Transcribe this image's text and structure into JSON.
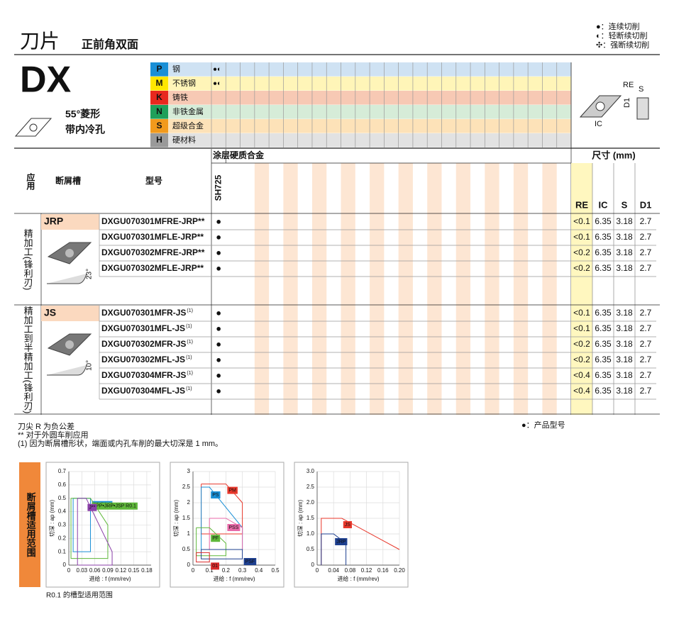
{
  "header": {
    "title": "刀片",
    "subtitle": "正前角双面",
    "legend": [
      "●：连续切削",
      "◐：轻断续切削",
      "✣：强断续切削"
    ]
  },
  "insert": {
    "code": "DX",
    "shape": "55°菱形",
    "feature": "带内冷孔",
    "dims": [
      "RE",
      "S",
      "D1",
      "IC"
    ]
  },
  "materials": [
    {
      "code": "P",
      "name": "钢",
      "color": "#1a8fd6",
      "tint": "#cfe2f3",
      "marks": "●◐"
    },
    {
      "code": "M",
      "name": "不锈钢",
      "color": "#ffe600",
      "tint": "#fff5b8",
      "marks": "●◐"
    },
    {
      "code": "K",
      "name": "铸铁",
      "color": "#e8281e",
      "tint": "#f7c9b4"
    },
    {
      "code": "N",
      "name": "非铁金属",
      "color": "#1fa05a",
      "tint": "#d6ecd8"
    },
    {
      "code": "S",
      "name": "超级合金",
      "color": "#f29a1c",
      "tint": "#fde2b8"
    },
    {
      "code": "H",
      "name": "硬材料",
      "color": "#9a9a9a",
      "tint": "#e2e2e2"
    }
  ],
  "table": {
    "coating": "涂层硬质合金",
    "grade": "SH725",
    "size": "尺寸 (mm)",
    "columns": [
      "应用",
      "断屑槽",
      "型号"
    ],
    "dims": [
      "RE",
      "IC",
      "S",
      "D1"
    ]
  },
  "groups": [
    {
      "application": "精加工(锋利刃)",
      "breaker": "JRP",
      "angle": "23°",
      "rows": [
        {
          "model": "DXGU070301MFRE-JRP**",
          "stock": "●",
          "dims": [
            "<0.1",
            "6.35",
            "3.18",
            "2.7"
          ]
        },
        {
          "prefix": "DXGU0703",
          "model": "01MFLE-JRP**",
          "stock": "●",
          "dims": [
            "<0.1",
            "6.35",
            "3.18",
            "2.7"
          ]
        },
        {
          "prefix": "DXGU0703",
          "model": "02MFRE-JRP**",
          "stock": "●",
          "dims": [
            "<0.2",
            "6.35",
            "3.18",
            "2.7"
          ]
        },
        {
          "prefix": "DXGU0703",
          "model": "02MFLE-JRP**",
          "stock": "●",
          "dims": [
            "<0.2",
            "6.35",
            "3.18",
            "2.7"
          ]
        }
      ]
    },
    {
      "application": "精加工到半精加工(锋利刃)",
      "breaker": "JS",
      "angle": "10°",
      "rows": [
        {
          "model": "DXGU070301MFR-JS",
          "note": "(1)",
          "stock": "●",
          "dims": [
            "<0.1",
            "6.35",
            "3.18",
            "2.7"
          ]
        },
        {
          "prefix": "DXGU0703",
          "model": "01MFL-JS",
          "note": "(1)",
          "stock": "●",
          "dims": [
            "<0.1",
            "6.35",
            "3.18",
            "2.7"
          ]
        },
        {
          "prefix": "DXGU0703",
          "model": "02MFR-JS",
          "note": "(1)",
          "stock": "●",
          "dims": [
            "<0.2",
            "6.35",
            "3.18",
            "2.7"
          ]
        },
        {
          "prefix": "DXGU0703",
          "model": "02MFL-JS",
          "note": "(1)",
          "stock": "●",
          "dims": [
            "<0.2",
            "6.35",
            "3.18",
            "2.7"
          ]
        },
        {
          "prefix": "DXGU0703",
          "model": "04MFR-JS",
          "note": "(1)",
          "stock": "●",
          "dims": [
            "<0.4",
            "6.35",
            "3.18",
            "2.7"
          ]
        },
        {
          "prefix": "DXGU0703",
          "model": "04MFL-JS",
          "note": "(1)",
          "stock": "●",
          "dims": [
            "<0.4",
            "6.35",
            "3.18",
            "2.7"
          ]
        }
      ]
    }
  ],
  "notes": [
    "刀尖 R 为负公差",
    "** 对于外圆车削应用",
    "(1) 因为断屑槽形状，端面或内孔车削的最大切深是 1 mm。"
  ],
  "stock_note": "●：产品型号",
  "ranges": {
    "title": "断屑槽适用范围",
    "caption": "R0.1 的槽型适用范围",
    "charts": [
      {
        "xlabel": "进给 : f (mm/rev)",
        "ylabel": "切深 : ap (mm)",
        "xlim": [
          0,
          0.19
        ],
        "ylim": [
          0,
          0.7
        ],
        "xticks": [
          0,
          0.03,
          0.06,
          0.09,
          0.12,
          0.15,
          0.18
        ],
        "yticks": [
          0,
          0.1,
          0.2,
          0.3,
          0.4,
          0.5,
          0.6,
          0.7
        ],
        "regions": [
          {
            "name": "JS R0.1",
            "color": "#1a8fd6",
            "x": [
              0.01,
              0.05,
              0.05,
              0.03,
              0.01,
              0.01
            ],
            "y": [
              0.5,
              0.5,
              0.1,
              0.1,
              0.1,
              0.5
            ]
          },
          {
            "name": "JPP•JRP•JSP R0.1",
            "color": "#5fb83a",
            "x": [
              0.005,
              0.05,
              0.09,
              0.09,
              0.005,
              0.005
            ],
            "y": [
              0.5,
              0.5,
              0.3,
              0.05,
              0.05,
              0.5
            ]
          },
          {
            "name": "J**",
            "color": "#8a3fa8",
            "x": [
              0.02,
              0.04,
              0.1,
              0.1,
              0.02,
              0.02
            ],
            "y": [
              0.5,
              0.5,
              0.1,
              0,
              0,
              0.5
            ]
          }
        ]
      },
      {
        "xlabel": "进给 : f (mm/rev)",
        "ylabel": "切深 : ap (mm)",
        "xlim": [
          0,
          0.5
        ],
        "ylim": [
          0,
          3
        ],
        "xticks": [
          0,
          0.1,
          0.2,
          0.3,
          0.4,
          0.5
        ],
        "yticks": [
          0,
          0.5,
          1,
          1.5,
          2,
          2.5,
          3
        ],
        "regions": [
          {
            "name": "PM",
            "color": "#e8372b",
            "x": [
              0.05,
              0.2,
              0.3,
              0.3,
              0.05,
              0.05
            ],
            "y": [
              2.6,
              2.6,
              2,
              1,
              1,
              2.6
            ]
          },
          {
            "name": "PS",
            "color": "#1a8fd6",
            "x": [
              0.05,
              0.1,
              0.3,
              0.3,
              0.05,
              0.05
            ],
            "y": [
              2.5,
              2.5,
              1.2,
              0.5,
              0.5,
              2.5
            ]
          },
          {
            "name": "PSS",
            "color": "#e86aa8",
            "x": [
              0.1,
              0.2,
              0.3,
              0.3,
              0.1,
              0.1
            ],
            "y": [
              1.5,
              1.5,
              1.2,
              0.5,
              0.5,
              1.5
            ]
          },
          {
            "name": "PF",
            "color": "#5fb83a",
            "x": [
              0.02,
              0.1,
              0.2,
              0.2,
              0.02,
              0.02
            ],
            "y": [
              1.2,
              1.2,
              0.7,
              0.3,
              0.3,
              1.2
            ]
          },
          {
            "name": "PSF",
            "color": "#1d3f8f",
            "x": [
              0.05,
              0.3,
              0.3,
              0.05,
              0.05
            ],
            "y": [
              0.5,
              0.5,
              0.2,
              0.2,
              0.5
            ]
          },
          {
            "name": "01",
            "color": "#d92a2a",
            "x": [
              0.02,
              0.1,
              0.1,
              0.02,
              0.02
            ],
            "y": [
              0.4,
              0.4,
              0.1,
              0.1,
              0.4
            ]
          }
        ]
      },
      {
        "xlabel": "进给 : f (mm/rev)",
        "ylabel": "切深 : ap (mm)",
        "xlim": [
          0,
          0.2
        ],
        "ylim": [
          0,
          3
        ],
        "xticks": [
          0,
          0.04,
          0.08,
          0.12,
          0.16,
          {
            "value": 0.2,
            "label": "0.20"
          }
        ],
        "yticks": [
          0,
          0.5,
          {
            "value": 1,
            "label": "1.0"
          },
          1.5,
          {
            "value": 2,
            "label": "2.0"
          },
          2.5,
          {
            "value": 3,
            "label": "3.0"
          }
        ],
        "regions": [
          {
            "name": "JS",
            "color": "#e8372b",
            "x": [
              0.01,
              0.01,
              0.06,
              0.2
            ],
            "y": [
              0,
              1.5,
              1.5,
              0.5
            ]
          },
          {
            "name": "JRP",
            "color": "#1d3f8f",
            "x": [
              0.01,
              0.01,
              0.04,
              0.07,
              0.07
            ],
            "y": [
              0,
              1,
              1,
              0.7,
              0
            ]
          }
        ]
      }
    ]
  }
}
